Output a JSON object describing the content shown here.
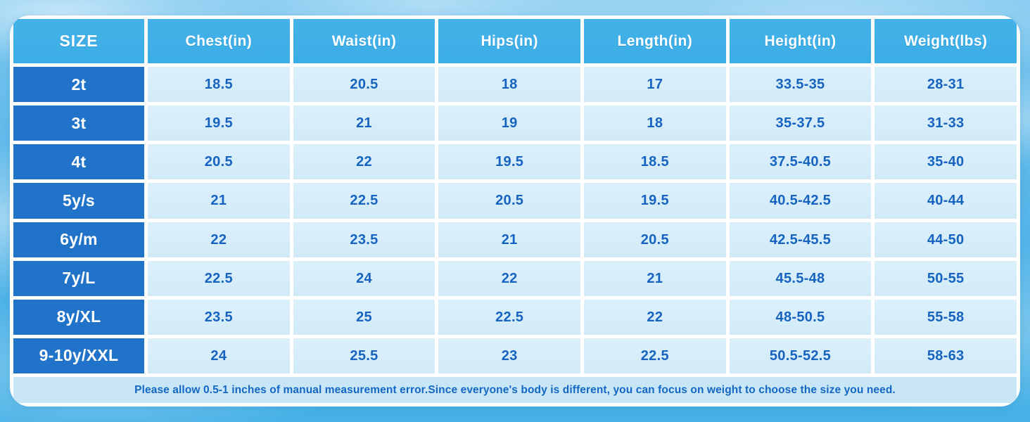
{
  "chart_data": {
    "type": "table",
    "columns": [
      "SIZE",
      "Chest(in)",
      "Waist(in)",
      "Hips(in)",
      "Length(in)",
      "Height(in)",
      "Weight(lbs)"
    ],
    "rows": [
      {
        "size": "2t",
        "values": [
          "18.5",
          "20.5",
          "18",
          "17",
          "33.5-35",
          "28-31"
        ]
      },
      {
        "size": "3t",
        "values": [
          "19.5",
          "21",
          "19",
          "18",
          "35-37.5",
          "31-33"
        ]
      },
      {
        "size": "4t",
        "values": [
          "20.5",
          "22",
          "19.5",
          "18.5",
          "37.5-40.5",
          "35-40"
        ]
      },
      {
        "size": "5y/s",
        "values": [
          "21",
          "22.5",
          "20.5",
          "19.5",
          "40.5-42.5",
          "40-44"
        ]
      },
      {
        "size": "6y/m",
        "values": [
          "22",
          "23.5",
          "21",
          "20.5",
          "42.5-45.5",
          "44-50"
        ]
      },
      {
        "size": "7y/L",
        "values": [
          "22.5",
          "24",
          "22",
          "21",
          "45.5-48",
          "50-55"
        ]
      },
      {
        "size": "8y/XL",
        "values": [
          "23.5",
          "25",
          "22.5",
          "22",
          "48-50.5",
          "55-58"
        ]
      },
      {
        "size": "9-10y/XXL",
        "values": [
          "24",
          "25.5",
          "23",
          "22.5",
          "50.5-52.5",
          "58-63"
        ]
      }
    ],
    "note": "Please allow 0.5-1 inches of manual measurement error.Since everyone's body is different, you can focus on weight to choose the size you need."
  },
  "colors": {
    "header_bg": "#3BADE6",
    "header_text": "#FFFFFF",
    "size_cell_bg": "#2173C9",
    "data_cell_bg": "#D2EAF8",
    "data_text": "#1664C0",
    "note_bg": "#C9E6F6",
    "note_text": "#1467C3",
    "table_border": "#FFFFFF",
    "sky_top": "#7CC7EF",
    "sky_bottom": "#45B1E6"
  }
}
